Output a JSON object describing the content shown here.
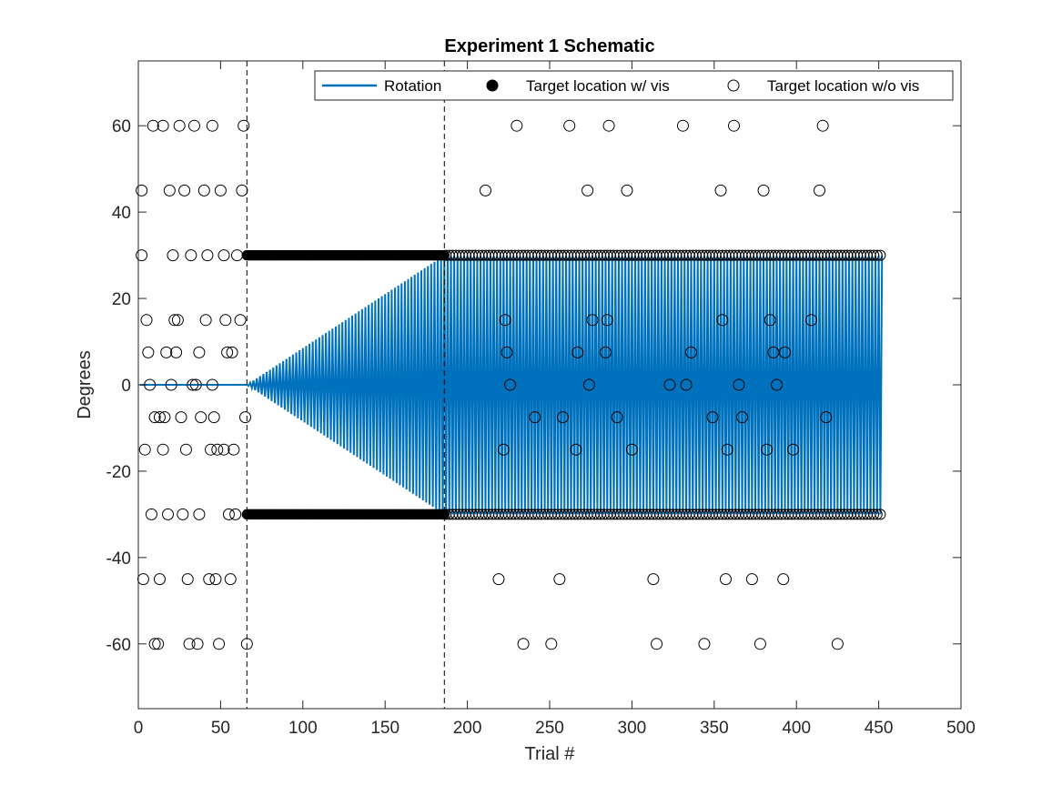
{
  "chart_data": {
    "type": "scatter",
    "title": "Experiment 1 Schematic",
    "xlabel": "Trial #",
    "ylabel": "Degrees",
    "xlim": [
      0,
      500
    ],
    "ylim": [
      -75,
      75
    ],
    "xticks": [
      0,
      50,
      100,
      150,
      200,
      250,
      300,
      350,
      400,
      450,
      500
    ],
    "yticks": [
      -60,
      -40,
      -20,
      0,
      20,
      40,
      60
    ],
    "grid": false,
    "legend_location": "top-right",
    "colors": {
      "rotation": "#0072BD",
      "marker": "#000000",
      "dashed": "#000000"
    },
    "phase_boundaries": [
      66,
      186
    ],
    "series": [
      {
        "name": "Rotation",
        "style": "line",
        "segments": [
          {
            "x_start": 1,
            "x_end": 66,
            "value": 0
          },
          {
            "x_start": 66,
            "x_end": 186,
            "pattern": "alternating",
            "amplitude_start": 0,
            "amplitude_end": 30
          },
          {
            "x_start": 186,
            "x_end": 452,
            "pattern": "alternating",
            "amplitude": 30
          }
        ]
      },
      {
        "name": "Target location w/ vis",
        "style": "filled",
        "x_range": [
          66,
          186
        ],
        "y_values": [
          30,
          -30
        ]
      },
      {
        "name": "Target location w/o vis",
        "style": "open",
        "points": [
          [
            2,
            45
          ],
          [
            2,
            30
          ],
          [
            3,
            -45
          ],
          [
            4,
            -15
          ],
          [
            5,
            15
          ],
          [
            6,
            7.5
          ],
          [
            7,
            0
          ],
          [
            8,
            -30
          ],
          [
            10,
            -60
          ],
          [
            9,
            60
          ],
          [
            10,
            -7.5
          ],
          [
            12,
            -60
          ],
          [
            13,
            -45
          ],
          [
            13,
            -7.5
          ],
          [
            15,
            -15
          ],
          [
            15,
            60
          ],
          [
            16,
            -7.5
          ],
          [
            17,
            7.5
          ],
          [
            18,
            -30
          ],
          [
            19,
            45
          ],
          [
            20,
            0
          ],
          [
            21,
            30
          ],
          [
            22,
            15
          ],
          [
            23,
            7.5
          ],
          [
            24,
            15
          ],
          [
            25,
            60
          ],
          [
            26,
            -7.5
          ],
          [
            27,
            -30
          ],
          [
            28,
            45
          ],
          [
            29,
            -15
          ],
          [
            30,
            -45
          ],
          [
            31,
            -60
          ],
          [
            32,
            30
          ],
          [
            33,
            0
          ],
          [
            34,
            60
          ],
          [
            35,
            0
          ],
          [
            36,
            -60
          ],
          [
            37,
            7.5
          ],
          [
            37,
            -30
          ],
          [
            38,
            -7.5
          ],
          [
            40,
            45
          ],
          [
            41,
            15
          ],
          [
            42,
            30
          ],
          [
            43,
            -45
          ],
          [
            44,
            -15
          ],
          [
            45,
            60
          ],
          [
            45,
            0
          ],
          [
            46,
            -7.5
          ],
          [
            47,
            -45
          ],
          [
            48,
            -15
          ],
          [
            49,
            -60
          ],
          [
            50,
            45
          ],
          [
            52,
            30
          ],
          [
            52,
            -15
          ],
          [
            53,
            15
          ],
          [
            54,
            7.5
          ],
          [
            55,
            -30
          ],
          [
            56,
            -45
          ],
          [
            57,
            7.5
          ],
          [
            58,
            -15
          ],
          [
            59,
            -30
          ],
          [
            60,
            30
          ],
          [
            62,
            15
          ],
          [
            63,
            45
          ],
          [
            64,
            60
          ],
          [
            65,
            -7.5
          ],
          [
            66,
            -60
          ],
          [
            211,
            45
          ],
          [
            219,
            -45
          ],
          [
            222,
            -15
          ],
          [
            223,
            15
          ],
          [
            224,
            7.5
          ],
          [
            226,
            0
          ],
          [
            230,
            60
          ],
          [
            234,
            -60
          ],
          [
            241,
            -7.5
          ],
          [
            251,
            -60
          ],
          [
            256,
            -45
          ],
          [
            258,
            -7.5
          ],
          [
            262,
            60
          ],
          [
            266,
            -15
          ],
          [
            267,
            7.5
          ],
          [
            273,
            45
          ],
          [
            274,
            0
          ],
          [
            276,
            15
          ],
          [
            284,
            7.5
          ],
          [
            285,
            15
          ],
          [
            286,
            60
          ],
          [
            291,
            -7.5
          ],
          [
            297,
            45
          ],
          [
            300,
            -15
          ],
          [
            313,
            -45
          ],
          [
            315,
            -60
          ],
          [
            323,
            0
          ],
          [
            331,
            60
          ],
          [
            333,
            0
          ],
          [
            336,
            7.5
          ],
          [
            344,
            -60
          ],
          [
            349,
            -7.5
          ],
          [
            354,
            45
          ],
          [
            355,
            15
          ],
          [
            357,
            -45
          ],
          [
            358,
            -15
          ],
          [
            362,
            60
          ],
          [
            365,
            0
          ],
          [
            367,
            -7.5
          ],
          [
            373,
            -45
          ],
          [
            378,
            -60
          ],
          [
            380,
            45
          ],
          [
            382,
            -15
          ],
          [
            384,
            15
          ],
          [
            386,
            7.5
          ],
          [
            388,
            0
          ],
          [
            392,
            -45
          ],
          [
            393,
            7.5
          ],
          [
            398,
            -15
          ],
          [
            409,
            15
          ],
          [
            414,
            45
          ],
          [
            416,
            60
          ],
          [
            418,
            -7.5
          ],
          [
            425,
            -60
          ]
        ],
        "dense_rows": [
          {
            "y": 30,
            "x_range": [
              187,
              452
            ]
          },
          {
            "y": -30,
            "x_range": [
              187,
              452
            ]
          }
        ]
      }
    ]
  }
}
